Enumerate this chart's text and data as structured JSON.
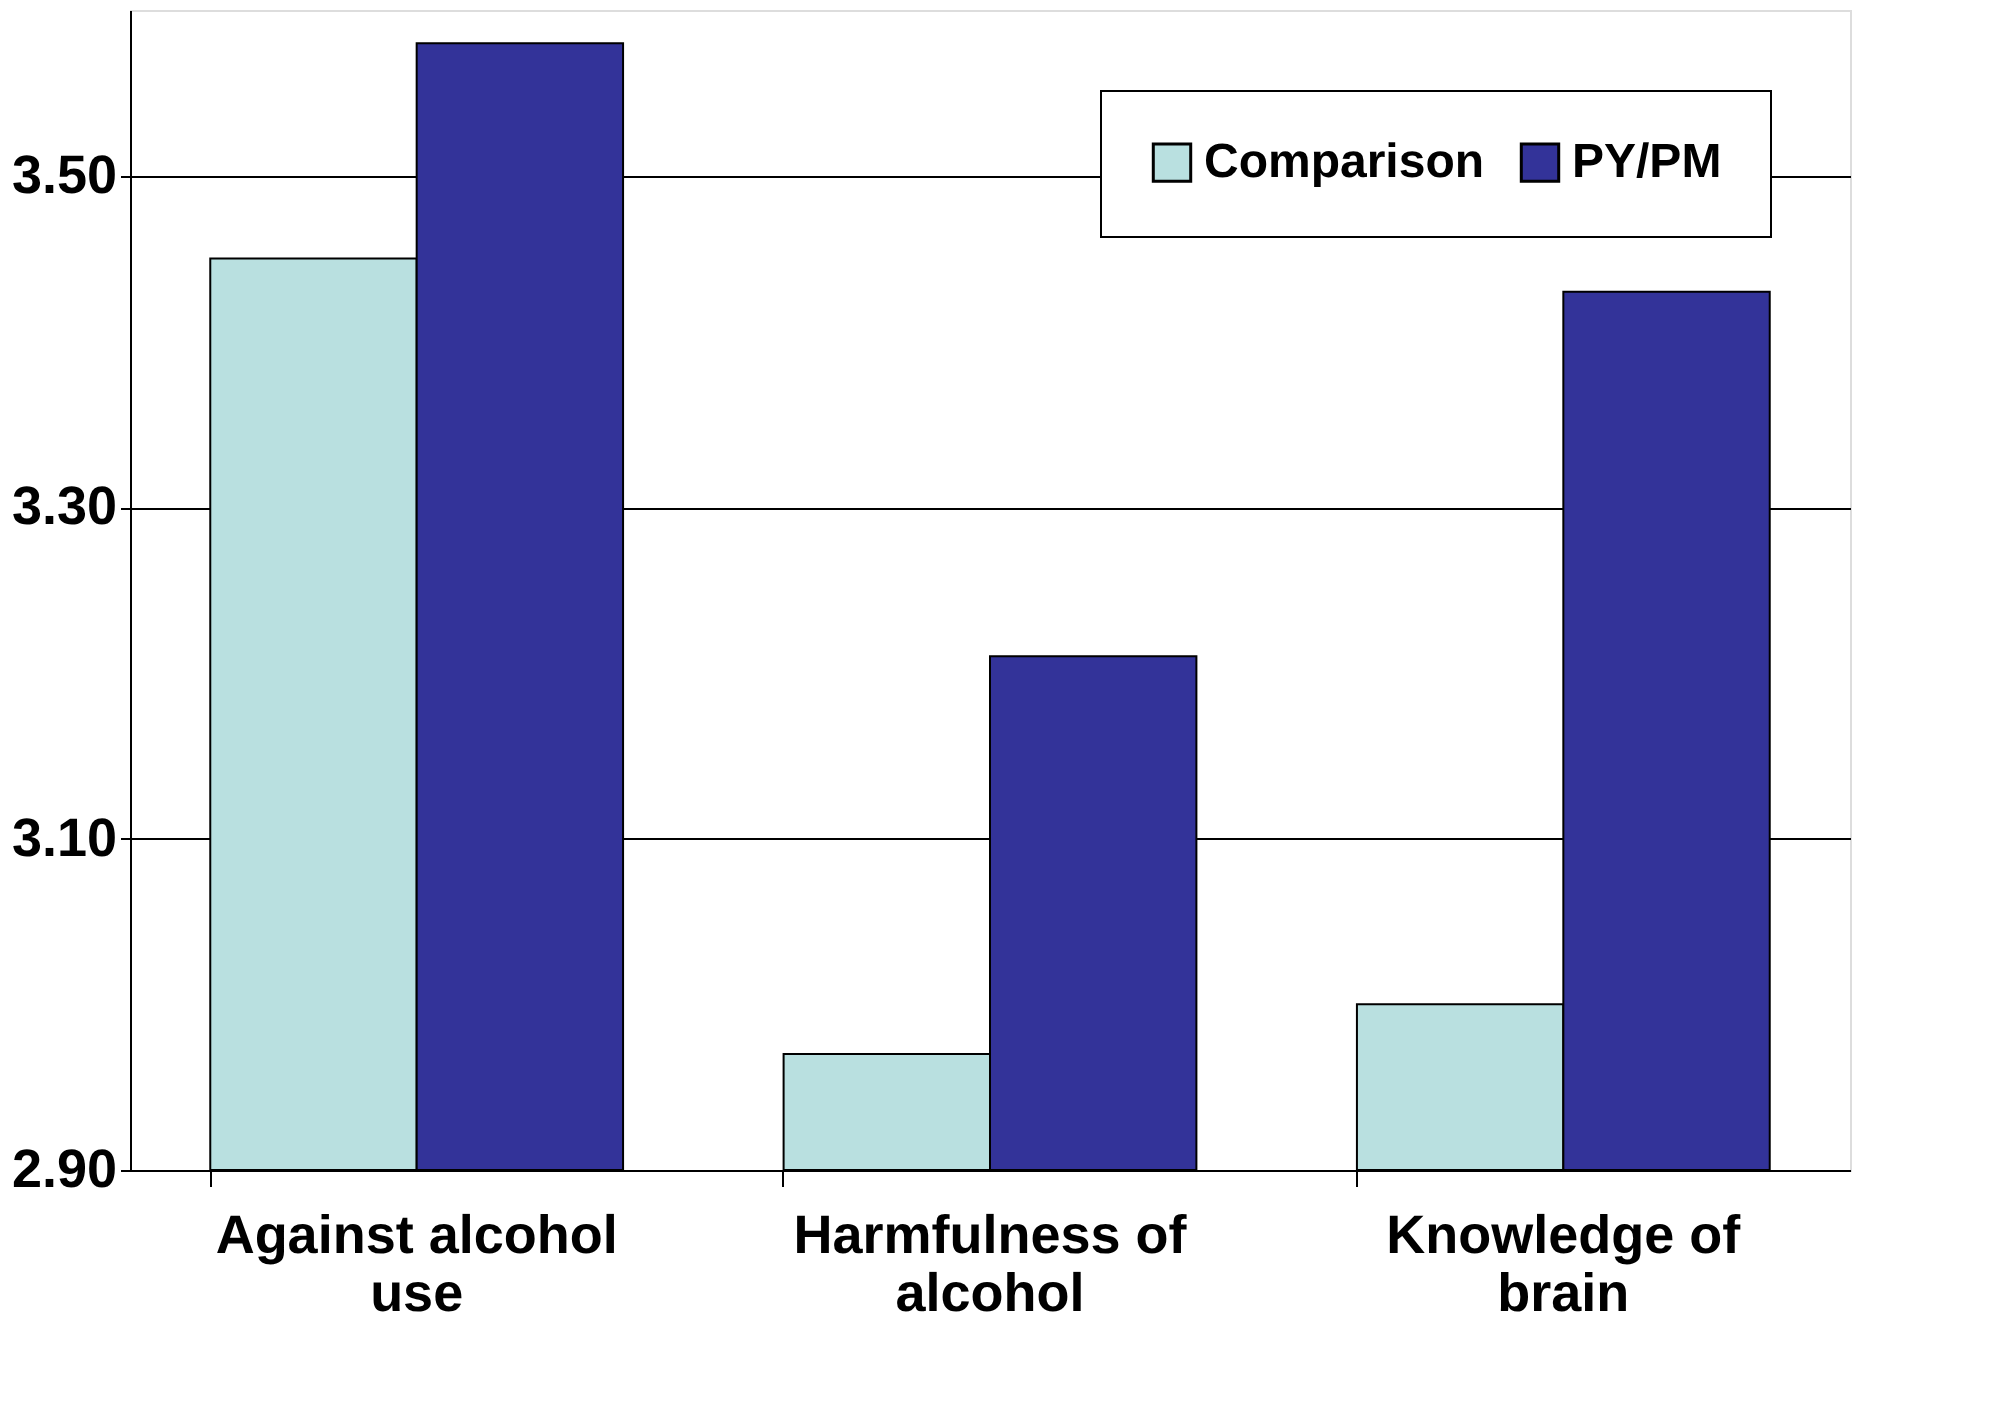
{
  "chart_data": {
    "type": "bar",
    "categories": [
      "Against alcohol use",
      "Harmfulness of alcohol",
      "Knowledge of brain"
    ],
    "series": [
      {
        "name": "Comparison",
        "color": "#b9e0e0",
        "values": [
          3.45,
          2.97,
          3.0
        ]
      },
      {
        "name": "PY/PM",
        "color": "#333399",
        "values": [
          3.58,
          3.21,
          3.43
        ]
      }
    ],
    "ylim": [
      2.9,
      3.6
    ],
    "yticks": [
      {
        "value": 2.9,
        "label": "2.90"
      },
      {
        "value": 3.1,
        "label": "3.10"
      },
      {
        "value": 3.3,
        "label": "3.30"
      },
      {
        "value": 3.5,
        "label": "3.50"
      }
    ],
    "grid": "y",
    "legend": "top right"
  }
}
